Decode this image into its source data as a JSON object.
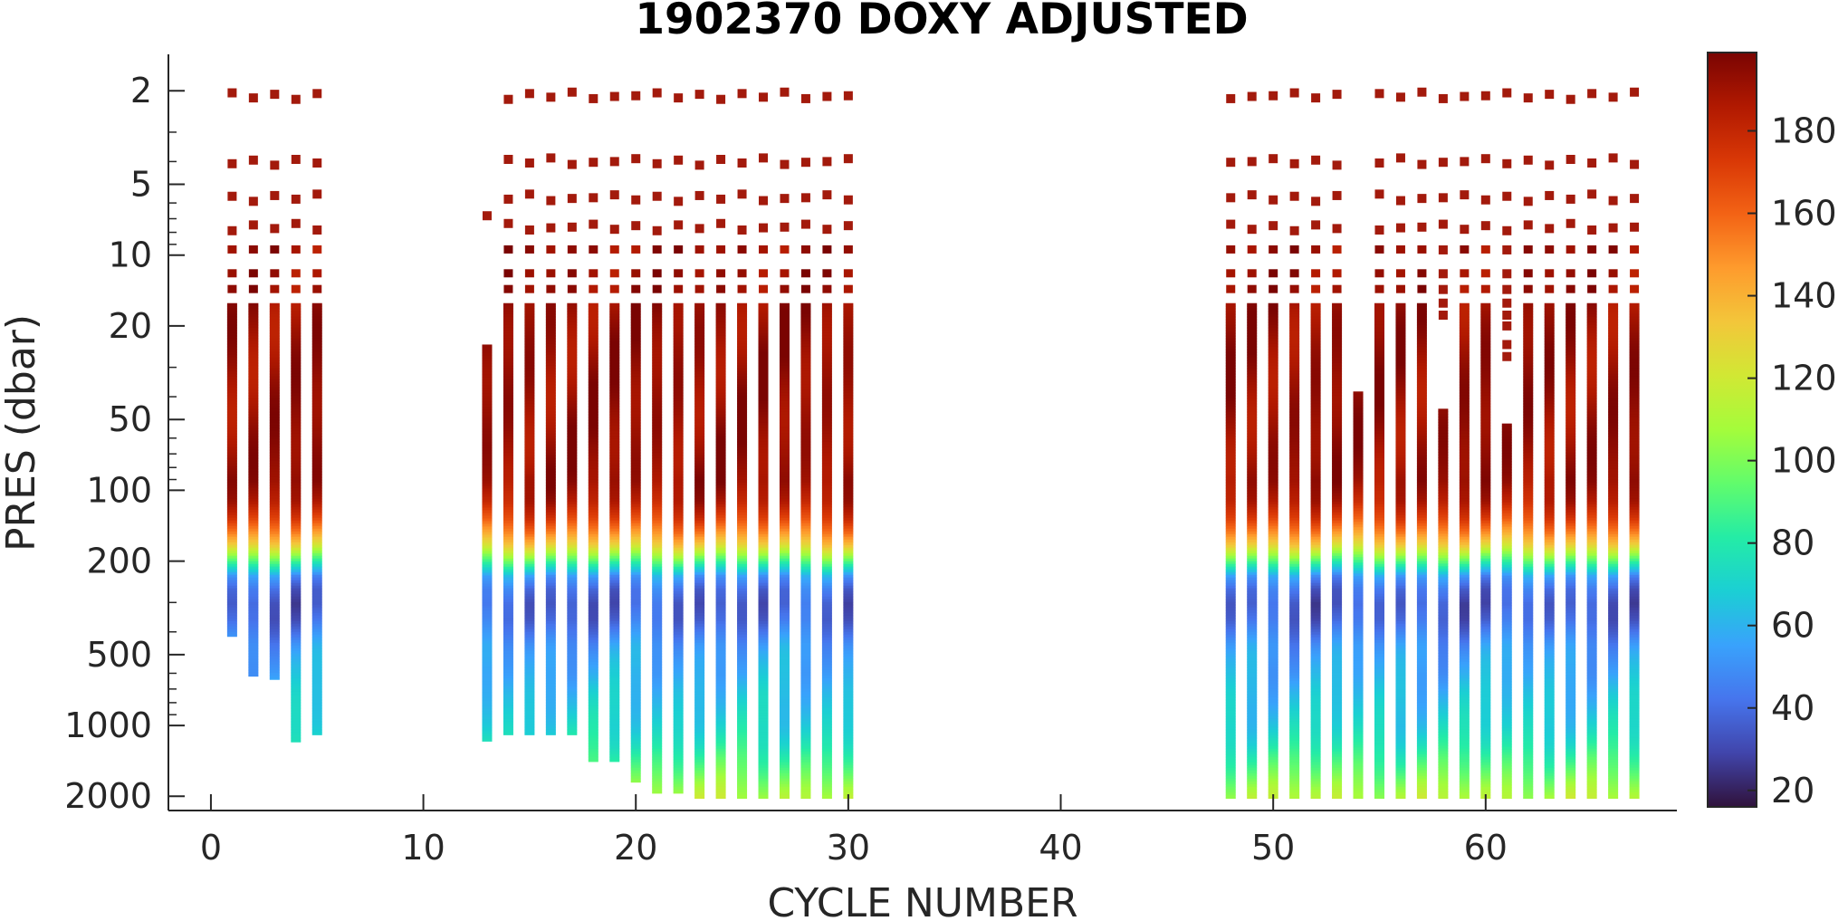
{
  "chart_data": {
    "type": "heatmap",
    "title": "1902370  DOXY ADJUSTED",
    "xlabel": "CYCLE NUMBER",
    "ylabel": "PRES (dbar)",
    "xlim": [
      -2,
      69
    ],
    "ylim": [
      1.4,
      2300
    ],
    "yscale": "log",
    "y_reversed": true,
    "xticks": [
      0,
      10,
      20,
      30,
      40,
      50,
      60
    ],
    "yticks": [
      2,
      5,
      10,
      20,
      50,
      100,
      200,
      500,
      1000,
      2000
    ],
    "colorbar": {
      "colormap": "turbo",
      "range": [
        16,
        199
      ],
      "ticks": [
        20,
        40,
        60,
        80,
        100,
        120,
        140,
        160,
        180
      ]
    },
    "colormap_stops": [
      "#30123b",
      "#4145ab",
      "#4675ed",
      "#39a2fc",
      "#1bcfd4",
      "#24eca6",
      "#61fc6c",
      "#a4fc3b",
      "#d1e834",
      "#f3c63a",
      "#fe9b2d",
      "#f36315",
      "#d93806",
      "#b11901",
      "#7a0402"
    ],
    "profile_shape": {
      "pres": [
        2,
        4,
        6,
        8,
        10,
        15,
        20,
        30,
        50,
        70,
        90,
        110,
        130,
        150,
        170,
        190,
        210,
        230,
        260,
        300,
        350,
        400,
        450,
        500,
        600,
        700,
        800,
        1000,
        1200,
        1500,
        1800,
        2000
      ],
      "doxy": [
        192,
        192,
        192,
        192,
        192,
        192,
        192,
        192,
        192,
        192,
        192,
        185,
        170,
        150,
        128,
        100,
        75,
        52,
        40,
        35,
        38,
        45,
        52,
        55,
        58,
        62,
        65,
        70,
        78,
        92,
        105,
        112
      ]
    },
    "surface_pres": [
      2.1,
      4.0,
      5.7,
      7.6
    ],
    "profiles": [
      {
        "cycle": 1,
        "top": 9.5,
        "bottom": 420,
        "start": 4
      },
      {
        "cycle": 2,
        "top": 9.5,
        "bottom": 620,
        "start": 4
      },
      {
        "cycle": 3,
        "top": 9.5,
        "bottom": 640,
        "start": 4
      },
      {
        "cycle": 4,
        "top": 9.5,
        "bottom": 1180,
        "start": 4
      },
      {
        "cycle": 5,
        "top": 9.5,
        "bottom": 1100,
        "start": 4
      },
      {
        "cycle": 13,
        "top": 24,
        "bottom": 1170,
        "start": 21,
        "extra": [
          6.8
        ]
      },
      {
        "cycle": 14,
        "top": 9.5,
        "bottom": 1100,
        "start": 4
      },
      {
        "cycle": 15,
        "top": 9.5,
        "bottom": 1100,
        "start": 4
      },
      {
        "cycle": 16,
        "top": 9.5,
        "bottom": 1100,
        "start": 4
      },
      {
        "cycle": 17,
        "top": 9.5,
        "bottom": 1100,
        "start": 4
      },
      {
        "cycle": 18,
        "top": 9.5,
        "bottom": 1430,
        "start": 4
      },
      {
        "cycle": 19,
        "top": 9.5,
        "bottom": 1430,
        "start": 4
      },
      {
        "cycle": 20,
        "top": 9.5,
        "bottom": 1750,
        "start": 4
      },
      {
        "cycle": 21,
        "top": 9.5,
        "bottom": 1950,
        "start": 4
      },
      {
        "cycle": 22,
        "top": 9.5,
        "bottom": 1950,
        "start": 4
      },
      {
        "cycle": 23,
        "top": 9.5,
        "bottom": 2050,
        "start": 4
      },
      {
        "cycle": 24,
        "top": 9.5,
        "bottom": 2050,
        "start": 4
      },
      {
        "cycle": 25,
        "top": 9.5,
        "bottom": 2050,
        "start": 4
      },
      {
        "cycle": 26,
        "top": 9.5,
        "bottom": 2050,
        "start": 4
      },
      {
        "cycle": 27,
        "top": 9.5,
        "bottom": 2050,
        "start": 4
      },
      {
        "cycle": 28,
        "top": 9.5,
        "bottom": 2050,
        "start": 4
      },
      {
        "cycle": 29,
        "top": 9.5,
        "bottom": 2050,
        "start": 4
      },
      {
        "cycle": 30,
        "top": 9.5,
        "bottom": 2050,
        "start": 4
      },
      {
        "cycle": 48,
        "top": 9.5,
        "bottom": 2050,
        "start": 4
      },
      {
        "cycle": 49,
        "top": 9.5,
        "bottom": 2050,
        "start": 4
      },
      {
        "cycle": 50,
        "top": 9.5,
        "bottom": 2050,
        "start": 4
      },
      {
        "cycle": 51,
        "top": 9.5,
        "bottom": 2050,
        "start": 4
      },
      {
        "cycle": 52,
        "top": 9.5,
        "bottom": 2050,
        "start": 4
      },
      {
        "cycle": 53,
        "top": 9.5,
        "bottom": 2050,
        "start": 4
      },
      {
        "cycle": 54,
        "top": 38,
        "bottom": 2050,
        "start": 0
      },
      {
        "cycle": 55,
        "top": 9.5,
        "bottom": 2050,
        "start": 4
      },
      {
        "cycle": 56,
        "top": 9.5,
        "bottom": 2050,
        "start": 4
      },
      {
        "cycle": 57,
        "top": 9.5,
        "bottom": 2050,
        "start": 4
      },
      {
        "cycle": 58,
        "top": 45,
        "bottom": 2050,
        "start": 4,
        "extra": [
          9.5,
          12,
          14,
          16,
          18
        ]
      },
      {
        "cycle": 59,
        "top": 9.5,
        "bottom": 2050,
        "start": 4
      },
      {
        "cycle": 60,
        "top": 9.5,
        "bottom": 2050,
        "start": 4
      },
      {
        "cycle": 61,
        "top": 52,
        "bottom": 2050,
        "start": 4,
        "extra": [
          9.5,
          12,
          14,
          16,
          18,
          20,
          24,
          27
        ]
      },
      {
        "cycle": 62,
        "top": 9.5,
        "bottom": 2050,
        "start": 4
      },
      {
        "cycle": 63,
        "top": 9.5,
        "bottom": 2050,
        "start": 4
      },
      {
        "cycle": 64,
        "top": 9.5,
        "bottom": 2050,
        "start": 4
      },
      {
        "cycle": 65,
        "top": 9.5,
        "bottom": 2050,
        "start": 4
      },
      {
        "cycle": 66,
        "top": 9.5,
        "bottom": 2050,
        "start": 4
      },
      {
        "cycle": 67,
        "top": 9.5,
        "bottom": 2050,
        "start": 4
      }
    ]
  }
}
